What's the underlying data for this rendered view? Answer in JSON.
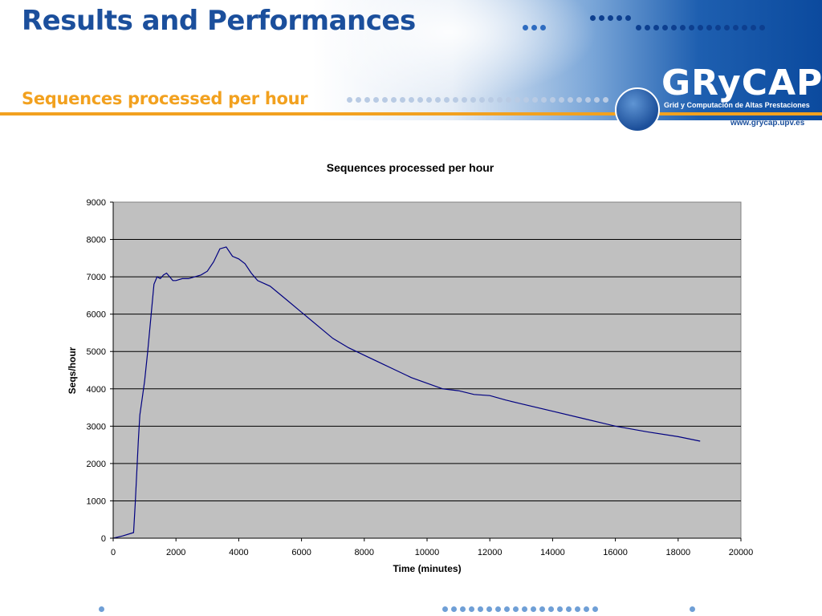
{
  "slide": {
    "title": "Results and Performances",
    "subtitle": "Sequences processed per hour"
  },
  "logo": {
    "name": "GRyCAP",
    "tagline": "Grid y Computación de Altas Prestaciones",
    "url": "www.grycap.upv.es"
  },
  "colors": {
    "title": "#1b4f9c",
    "subtitle": "#f2a11f",
    "plot_background": "#c0c0c0",
    "series_line": "#000080"
  },
  "chart_data": {
    "type": "line",
    "title": "Sequences processed per hour",
    "xlabel": "Time (minutes)",
    "ylabel": "Seqs/hour",
    "xlim": [
      0,
      20000
    ],
    "ylim": [
      0,
      9000
    ],
    "xticks": [
      0,
      2000,
      4000,
      6000,
      8000,
      10000,
      12000,
      14000,
      16000,
      18000,
      20000
    ],
    "yticks": [
      0,
      1000,
      2000,
      3000,
      4000,
      5000,
      6000,
      7000,
      8000,
      9000
    ],
    "grid": "horizontal",
    "series": [
      {
        "x": [
          0,
          300,
          650,
          700,
          800,
          850,
          900,
          1000,
          1100,
          1200,
          1300,
          1400,
          1500,
          1600,
          1700,
          1800,
          1900,
          2000,
          2200,
          2400,
          2600,
          2800,
          3000,
          3200,
          3400,
          3600,
          3800,
          4000,
          4200,
          4400,
          4600,
          5000,
          5500,
          6000,
          6500,
          7000,
          7500,
          8000,
          8500,
          9000,
          9500,
          10000,
          10500,
          11000,
          11500,
          12000,
          12500,
          13000,
          14000,
          15000,
          16000,
          17000,
          18000,
          18700
        ],
        "y": [
          0,
          60,
          150,
          900,
          2600,
          3300,
          3600,
          4200,
          5000,
          5900,
          6800,
          7000,
          6950,
          7050,
          7100,
          7000,
          6900,
          6900,
          6950,
          6950,
          7000,
          7050,
          7150,
          7400,
          7750,
          7800,
          7550,
          7480,
          7350,
          7100,
          6900,
          6750,
          6400,
          6050,
          5700,
          5350,
          5100,
          4900,
          4700,
          4500,
          4300,
          4150,
          4000,
          3950,
          3850,
          3820,
          3700,
          3600,
          3400,
          3200,
          3000,
          2850,
          2720,
          2600
        ]
      }
    ]
  },
  "footer": {
    "dot_color": "#6f9fd6"
  }
}
